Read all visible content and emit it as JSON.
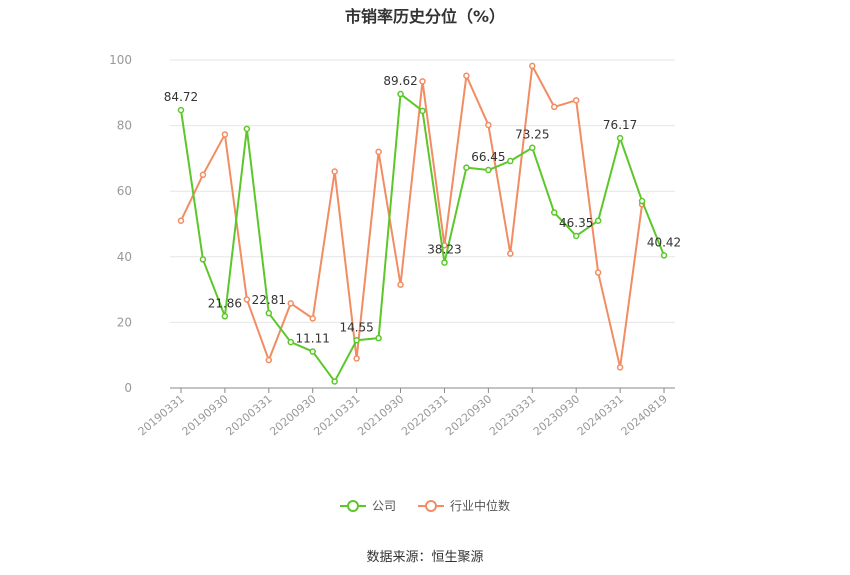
{
  "title": "市销率历史分位（%）",
  "source": "数据来源：恒生聚源",
  "colors": {
    "company": "#5cc72a",
    "industry": "#f28c62",
    "grid": "#e6e6e6",
    "axis": "#999999"
  },
  "chart_data": {
    "type": "line",
    "x": [
      "20190331",
      "20190630",
      "20190930",
      "20191231",
      "20200331",
      "20200630",
      "20200930",
      "20201231",
      "20210331",
      "20210630",
      "20210930",
      "20211231",
      "20220331",
      "20220630",
      "20220930",
      "20221231",
      "20230331",
      "20230630",
      "20230930",
      "20231231",
      "20240331",
      "20240630",
      "20240819"
    ],
    "x_tick_labels": [
      "20190331",
      "20190930",
      "20200331",
      "20200930",
      "20210331",
      "20210930",
      "20220331",
      "20220930",
      "20230331",
      "20230930",
      "20240331",
      "20240819"
    ],
    "ylim": [
      0,
      100
    ],
    "yticks": [
      0,
      20,
      40,
      60,
      80,
      100
    ],
    "grid": true,
    "legend_position": "bottom",
    "series": [
      {
        "name": "公司",
        "values": [
          84.72,
          39.2,
          21.86,
          79.0,
          22.81,
          14.0,
          11.11,
          2.0,
          14.55,
          15.2,
          89.62,
          84.5,
          38.23,
          67.2,
          66.45,
          69.2,
          73.25,
          53.5,
          46.35,
          51.0,
          76.17,
          57.0,
          40.42
        ],
        "labels": [
          "84.72",
          null,
          "21.86",
          null,
          "22.81",
          null,
          "11.11",
          null,
          "14.55",
          null,
          "89.62",
          null,
          "38.23",
          null,
          "66.45",
          null,
          "73.25",
          null,
          "46.35",
          null,
          "76.17",
          null,
          "40.42"
        ]
      },
      {
        "name": "行业中位数",
        "values": [
          51.0,
          65.0,
          77.3,
          27.0,
          8.5,
          25.8,
          21.2,
          66.0,
          9.0,
          72.0,
          31.5,
          93.5,
          43.5,
          95.2,
          80.2,
          41.0,
          98.2,
          85.7,
          87.7,
          35.2,
          6.3,
          56.0,
          null
        ]
      }
    ]
  }
}
